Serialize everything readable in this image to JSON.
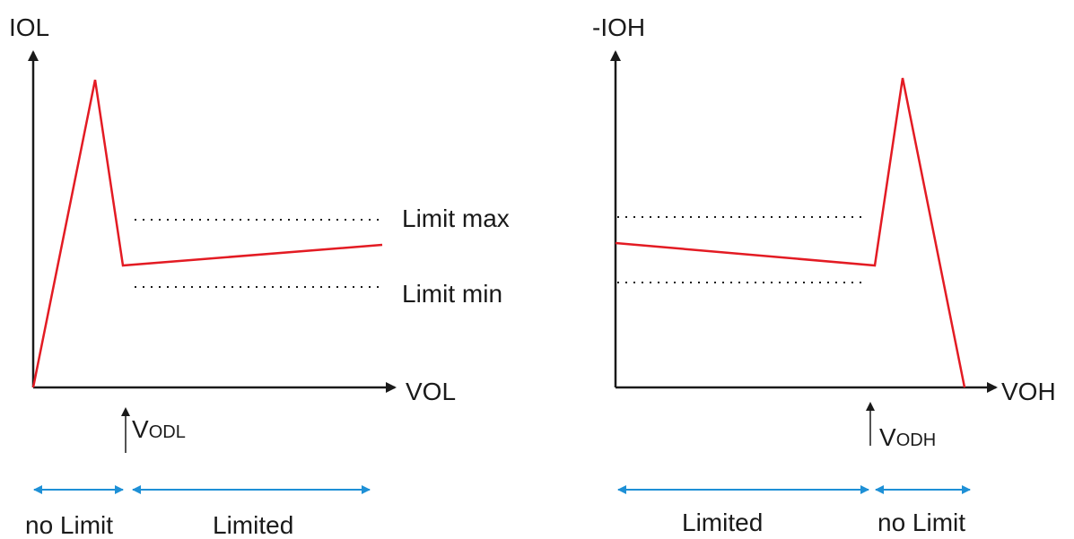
{
  "left": {
    "y_label": "IOL",
    "x_label": "VOL",
    "limit_max": "Limit max",
    "limit_min": "Limit min",
    "v_label": "V",
    "v_sub": "ODL",
    "range_left": "no Limit",
    "range_right": "Limited"
  },
  "right": {
    "y_label": "-IOH",
    "x_label": "VOH",
    "v_label": "V",
    "v_sub": "ODH",
    "range_left": "Limited",
    "range_right": "no Limit"
  },
  "colors": {
    "curve": "#e31b23",
    "axis": "#1a1a1a",
    "range_arrow": "#1e90d6"
  }
}
